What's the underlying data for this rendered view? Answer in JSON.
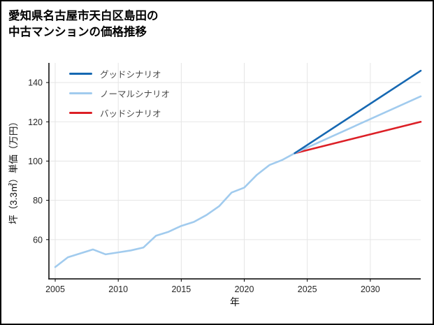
{
  "frame": {
    "background": "#ffffff",
    "border_color": "#000000"
  },
  "chart_data": {
    "type": "line",
    "title": "愛知県名古屋市天白区島田の中古マンションの価格推移",
    "title_lines": [
      "愛知県名古屋市天白区島田の",
      "中古マンションの価格推移"
    ],
    "xlabel": "年",
    "ylabel": "坪（3.3㎡）単価（万円）",
    "xlim": [
      2004.5,
      2034
    ],
    "ylim": [
      40,
      150
    ],
    "xticks": [
      2005,
      2010,
      2015,
      2020,
      2025,
      2030
    ],
    "yticks": [
      60,
      80,
      100,
      120,
      140
    ],
    "grid": true,
    "legend_position": "upper-left",
    "colors": {
      "grid": "#e5e5e5",
      "axis": "#000000",
      "tick_label": "#262626",
      "legend_text": "#474747"
    },
    "series": [
      {
        "key": "good-scenario",
        "name": "グッドシナリオ",
        "color": "#1668b2",
        "x": [
          2024,
          2034
        ],
        "y": [
          104,
          146
        ]
      },
      {
        "key": "normal-scenario",
        "name": "ノーマルシナリオ",
        "color": "#a1cbee",
        "x": [
          2005,
          2006,
          2007,
          2008,
          2009,
          2010,
          2011,
          2012,
          2013,
          2014,
          2015,
          2016,
          2017,
          2018,
          2019,
          2020,
          2021,
          2022,
          2023,
          2024,
          2034
        ],
        "y": [
          46,
          51,
          53,
          55,
          52.5,
          53.5,
          54.5,
          56,
          62,
          64,
          67,
          69,
          72.5,
          77,
          84,
          86.5,
          93,
          98,
          100.5,
          104,
          133
        ]
      },
      {
        "key": "bad-scenario",
        "name": "バッドシナリオ",
        "color": "#dc1f26",
        "x": [
          2024,
          2034
        ],
        "y": [
          104,
          120
        ]
      }
    ]
  }
}
